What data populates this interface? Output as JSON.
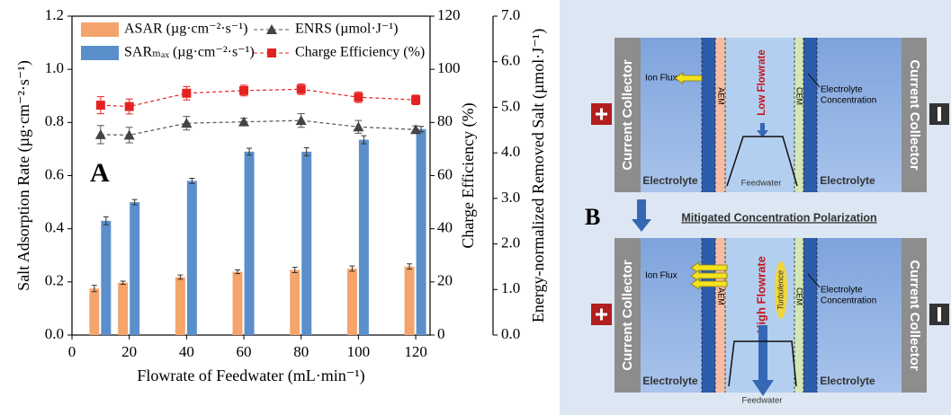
{
  "chart_data": {
    "type": "bar",
    "panel_label": "A",
    "x": [
      10,
      20,
      40,
      60,
      80,
      100,
      120
    ],
    "xlim": [
      0,
      125
    ],
    "xticks": [
      0,
      20,
      40,
      60,
      80,
      100,
      120
    ],
    "xlabel": "Flowrate of Feedwater (mL·min⁻¹)",
    "ylabel": "Salt Adsorption Rate (µg·cm⁻²·s⁻¹)",
    "y2label": "Charge Efficiency (%)",
    "y3label": "Energy-normalized Removed Salt (µmol·J⁻¹)",
    "ylim": [
      0,
      1.2
    ],
    "yticks": [
      {
        "value": 0,
        "label": "0.0"
      },
      {
        "value": 0.2,
        "label": "0.2"
      },
      {
        "value": 0.4,
        "label": "0.4"
      },
      {
        "value": 0.6,
        "label": "0.6"
      },
      {
        "value": 0.8,
        "label": "0.8"
      },
      {
        "value": 1.0,
        "label": "1.0"
      },
      {
        "value": 1.2,
        "label": "1.2"
      }
    ],
    "y2lim": [
      0,
      120
    ],
    "y2ticks": [
      0,
      20,
      40,
      60,
      80,
      100,
      120
    ],
    "y3lim": [
      0,
      7
    ],
    "y3ticks": [
      {
        "value": 0,
        "label": "0.0"
      },
      {
        "value": 1,
        "label": "1.0"
      },
      {
        "value": 2,
        "label": "2.0"
      },
      {
        "value": 3,
        "label": "3.0"
      },
      {
        "value": 4,
        "label": "4.0"
      },
      {
        "value": 5,
        "label": "5.0"
      },
      {
        "value": 6,
        "label": "6.0"
      },
      {
        "value": 7,
        "label": "7.0"
      }
    ],
    "series": [
      {
        "name": "ASAR (µg·cm⁻²·s⁻¹)",
        "type": "bar",
        "color": "#f5a46b",
        "values": [
          0.175,
          0.197,
          0.218,
          0.238,
          0.245,
          0.25,
          0.258
        ],
        "errors": [
          0.012,
          0.006,
          0.008,
          0.007,
          0.01,
          0.01,
          0.01
        ]
      },
      {
        "name": "SARₘₐₓ (µg·cm⁻²·s⁻¹)",
        "type": "bar",
        "color": "#5b8fcb",
        "values": [
          0.43,
          0.5,
          0.58,
          0.69,
          0.69,
          0.735,
          0.775
        ],
        "errors": [
          0.015,
          0.01,
          0.01,
          0.013,
          0.015,
          0.015,
          0.01
        ]
      },
      {
        "name": "ENRS (µmol·J⁻¹)",
        "type": "line",
        "axis": "y3",
        "marker": "triangle",
        "color": "#555555",
        "values": [
          4.4,
          4.39,
          4.65,
          4.68,
          4.71,
          4.57,
          4.51
        ],
        "errors": [
          0.2,
          0.17,
          0.15,
          0.08,
          0.15,
          0.14,
          0.08
        ]
      },
      {
        "name": "Charge Efficiency (%)",
        "type": "line",
        "axis": "y2",
        "marker": "square",
        "color": "#e52222",
        "values": [
          86.5,
          86,
          91,
          92,
          92.5,
          89.5,
          88.5
        ],
        "errors": [
          3.2,
          2.8,
          2.5,
          2,
          2,
          2,
          1.8
        ]
      }
    ]
  },
  "diagram": {
    "label": "B",
    "caption": "Mitigated Concentration Polarization",
    "panels": [
      {
        "collector_left": "Current Collector",
        "collector_right": "Current Collector",
        "electrolyte_left": "Electrolyte",
        "electrolyte_right": "Electrolyte",
        "ion_flux": "Ion Flux",
        "aem": "AEM",
        "cem": "CEM",
        "flowrate": "Low Flowrate",
        "feedwater": "Feedwater",
        "electrolyte_concentration": [
          "Electrolyte",
          "Concentration"
        ]
      },
      {
        "collector_left": "Current Collector",
        "collector_right": "Current Collector",
        "electrolyte_left": "Electrolyte",
        "electrolyte_right": "Electrolyte",
        "ion_flux": "Ion Flux",
        "aem": "AEM",
        "cem": "CEM",
        "flowrate": "High Flowrate",
        "turbulence": "Turbulence",
        "feedwater": "Feedwater",
        "electrolyte_concentration": [
          "Electrolyte",
          "Concentration"
        ]
      }
    ]
  }
}
